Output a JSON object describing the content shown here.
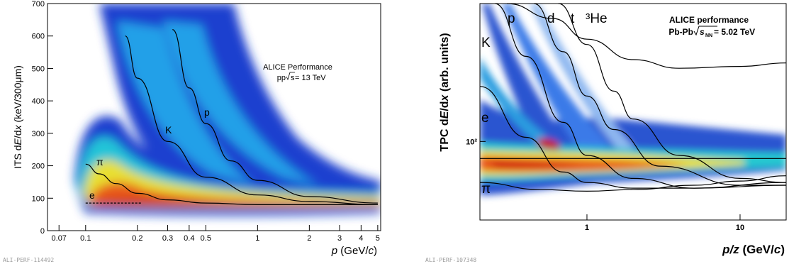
{
  "chart_data": [
    {
      "type": "heatmap",
      "panel": "left",
      "xaxis": {
        "label_main": "p",
        "label_unit": " (GeV/",
        "label_c": "c",
        "label_close": ")",
        "scale": "log",
        "range": [
          0.06,
          5.2
        ],
        "ticks": [
          "0.07",
          "0.1",
          "0.2",
          "0.3",
          "0.4",
          "0.5",
          "1",
          "2",
          "3",
          "4",
          "5"
        ],
        "tick_values": [
          0.07,
          0.1,
          0.2,
          0.3,
          0.4,
          0.5,
          1,
          2,
          3,
          4,
          5
        ]
      },
      "yaxis": {
        "label": "ITS dE/dx (keV/300μm)",
        "label_parts": [
          "ITS d",
          "E",
          "/d",
          "x",
          " (keV/300",
          "μ",
          "m)"
        ],
        "scale": "linear",
        "range": [
          0,
          700
        ],
        "ticks": [
          "0",
          "100",
          "200",
          "300",
          "400",
          "500",
          "600",
          "700"
        ],
        "tick_values": [
          0,
          100,
          200,
          300,
          400,
          500,
          600,
          700
        ]
      },
      "annotation": {
        "line1": "ALICE Performance",
        "line2_pre": "pp ",
        "line2_rad": "s",
        "line2_post": " = 13 TeV"
      },
      "species_labels": [
        "π",
        "K",
        "p",
        "e"
      ],
      "bands": [
        {
          "name": "π",
          "x": [
            0.1,
            0.12,
            0.15,
            0.2,
            0.3,
            0.5,
            1,
            2,
            5
          ],
          "y": [
            205,
            175,
            145,
            115,
            95,
            85,
            80,
            80,
            80
          ]
        },
        {
          "name": "K",
          "x": [
            0.17,
            0.2,
            0.3,
            0.5,
            1,
            2,
            5
          ],
          "y": [
            600,
            470,
            275,
            165,
            110,
            90,
            80
          ]
        },
        {
          "name": "p",
          "x": [
            0.32,
            0.4,
            0.5,
            0.7,
            1,
            2,
            5
          ],
          "y": [
            620,
            440,
            330,
            215,
            155,
            105,
            85
          ]
        },
        {
          "name": "e",
          "x": [
            0.1,
            0.21
          ],
          "y": [
            85,
            85
          ]
        }
      ],
      "tag": "ALI-PERF-114492"
    },
    {
      "type": "heatmap",
      "panel": "right",
      "xaxis": {
        "label_main": "p/z",
        "label_unit": " (GeV/",
        "label_c": "c",
        "label_close": ")",
        "scale": "log",
        "range": [
          0.2,
          20
        ],
        "ticks": [
          "1",
          "10"
        ],
        "tick_values": [
          1,
          10
        ]
      },
      "yaxis": {
        "label": "TPC dE/dx (arb. units)",
        "label_parts": [
          "TPC d",
          "E",
          "/d",
          "x",
          " (arb. units)"
        ],
        "scale": "log",
        "range": [
          40,
          500
        ],
        "ticks": [
          "10²"
        ],
        "tick_values": [
          100
        ]
      },
      "annotation": {
        "line1": "ALICE performance",
        "line2_pre": "Pb-Pb  ",
        "line2_rad": "s",
        "line2_sub": "NN",
        "line2_post": " = 5.02 TeV"
      },
      "species_labels": [
        "p",
        "d",
        "t",
        "³He",
        "K",
        "e",
        "π"
      ],
      "bands": [
        {
          "name": "π",
          "x": [
            0.2,
            0.5,
            1,
            2,
            5,
            10,
            20
          ],
          "y": [
            62,
            57,
            56,
            57,
            60,
            63,
            67
          ]
        },
        {
          "name": "e",
          "x": [
            0.2,
            1,
            5,
            20
          ],
          "y": [
            82,
            82,
            82,
            82
          ]
        },
        {
          "name": "K",
          "x": [
            0.2,
            0.4,
            0.7,
            1,
            2,
            5,
            20
          ],
          "y": [
            190,
            105,
            70,
            62,
            58,
            58,
            62
          ]
        },
        {
          "name": "p",
          "x": [
            0.25,
            0.4,
            0.7,
            1,
            2,
            5,
            20
          ],
          "y": [
            500,
            270,
            125,
            85,
            65,
            58,
            60
          ]
        },
        {
          "name": "d",
          "x": [
            0.45,
            0.7,
            1,
            1.5,
            3,
            10,
            20
          ],
          "y": [
            500,
            285,
            170,
            115,
            75,
            60,
            60
          ]
        },
        {
          "name": "t",
          "x": [
            0.65,
            1,
            1.5,
            2,
            4,
            10,
            20
          ],
          "y": [
            500,
            310,
            180,
            130,
            85,
            65,
            62
          ]
        },
        {
          "name": "³He",
          "x": [
            0.3,
            0.6,
            1,
            2,
            4,
            10,
            20
          ],
          "y": [
            500,
            420,
            330,
            260,
            235,
            240,
            250
          ]
        }
      ],
      "tag": "ALI-PERF-107348"
    }
  ]
}
